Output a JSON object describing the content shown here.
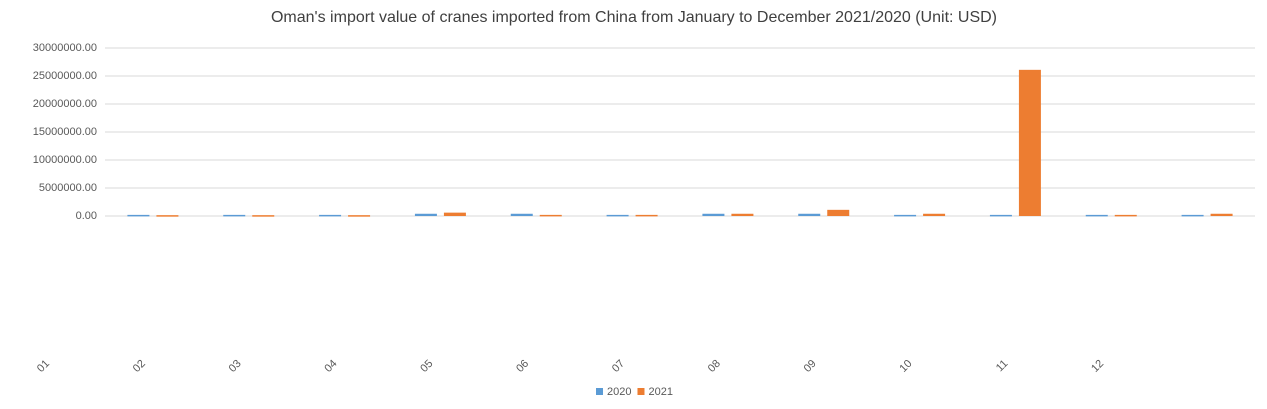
{
  "chart_data": {
    "type": "bar",
    "title": "Oman's import value of cranes imported from China from January to December 2021/2020 (Unit: USD)",
    "categories": [
      "01",
      "02",
      "03",
      "04",
      "05",
      "06",
      "07",
      "08",
      "09",
      "10",
      "11",
      "12"
    ],
    "series": [
      {
        "name": "2020",
        "color": "#5b9bd5",
        "values": [
          200000,
          200000,
          200000,
          400000,
          400000,
          200000,
          400000,
          400000,
          200000,
          200000,
          200000,
          200000
        ]
      },
      {
        "name": "2021",
        "color": "#ed7d31",
        "values": [
          150000,
          150000,
          150000,
          600000,
          200000,
          200000,
          400000,
          1100000,
          400000,
          26100000,
          200000,
          400000
        ]
      }
    ],
    "ylim": [
      0,
      30000000
    ],
    "yticks": [
      {
        "value": 0,
        "label": "0.00"
      },
      {
        "value": 5000000,
        "label": "5000000.00"
      },
      {
        "value": 10000000,
        "label": "10000000.00"
      },
      {
        "value": 15000000,
        "label": "15000000.00"
      },
      {
        "value": 20000000,
        "label": "20000000.00"
      },
      {
        "value": 25000000,
        "label": "25000000.00"
      },
      {
        "value": 30000000,
        "label": "30000000.00"
      }
    ],
    "grid": true
  }
}
